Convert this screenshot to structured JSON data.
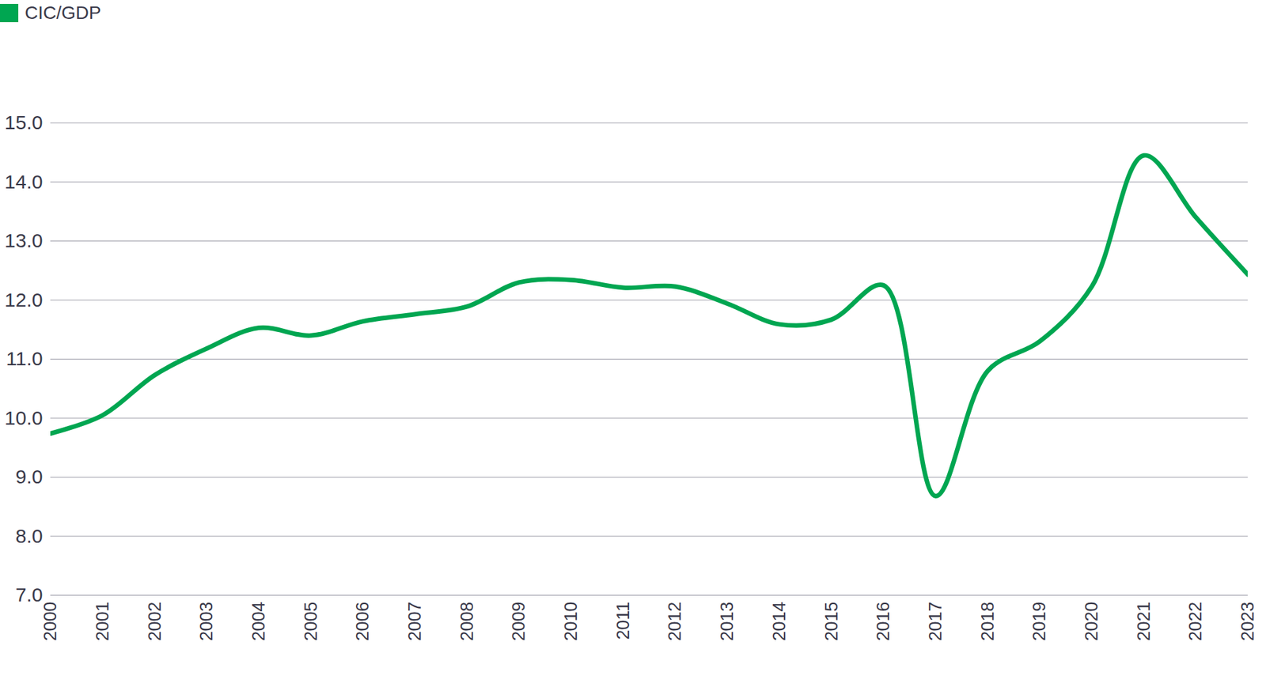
{
  "chart_data": {
    "type": "line",
    "x": [
      2000,
      2001,
      2002,
      2003,
      2004,
      2005,
      2006,
      2007,
      2008,
      2009,
      2010,
      2011,
      2012,
      2013,
      2014,
      2015,
      2016,
      2017,
      2018,
      2019,
      2020,
      2021,
      2022,
      2023
    ],
    "series": [
      {
        "name": "CIC/GDP",
        "color": "#00a651",
        "values": [
          9.74,
          10.05,
          10.73,
          11.18,
          11.53,
          11.4,
          11.64,
          11.76,
          11.89,
          12.3,
          12.34,
          12.21,
          12.23,
          11.94,
          11.59,
          11.67,
          12.25,
          8.68,
          10.8,
          11.3,
          12.23,
          14.45,
          13.4,
          12.43
        ]
      }
    ],
    "xlim": [
      2000,
      2023
    ],
    "xticks": [
      2000,
      2001,
      2002,
      2003,
      2004,
      2005,
      2006,
      2007,
      2008,
      2009,
      2010,
      2011,
      2012,
      2013,
      2014,
      2015,
      2016,
      2017,
      2018,
      2019,
      2020,
      2021,
      2022,
      2023
    ],
    "ylim": [
      7,
      15
    ],
    "yticks": [
      7,
      8,
      9,
      10,
      11,
      12,
      13,
      14,
      15
    ],
    "grid": true,
    "legend": "top-left"
  }
}
